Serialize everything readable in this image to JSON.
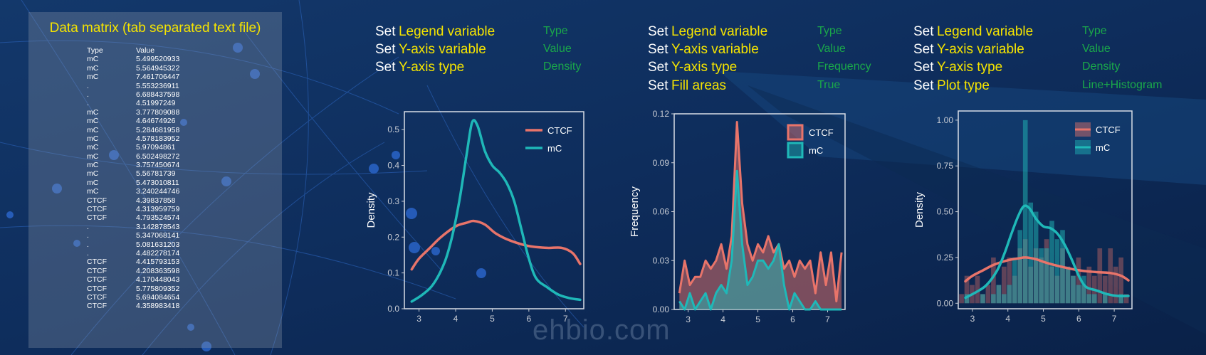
{
  "matrix": {
    "title": "Data matrix (tab separated text file)",
    "header": [
      "Type",
      "Value"
    ],
    "rows": [
      [
        "mC",
        "5.499520933"
      ],
      [
        "mC",
        "5.564945322"
      ],
      [
        "mC",
        "7.461706447"
      ],
      [
        ".",
        "5.553236911"
      ],
      [
        ".",
        "6.688437598"
      ],
      [
        ".",
        "4.51997249"
      ],
      [
        "mC",
        "3.777809088"
      ],
      [
        "mC",
        "4.64674926"
      ],
      [
        "mC",
        "5.284681958"
      ],
      [
        "mC",
        "4.578183952"
      ],
      [
        "mC",
        "5.97094861"
      ],
      [
        "mC",
        "6.502498272"
      ],
      [
        "mC",
        "3.757450674"
      ],
      [
        "mC",
        "5.56781739"
      ],
      [
        "mC",
        "5.473010811"
      ],
      [
        "mC",
        "3.240244746"
      ],
      [
        "CTCF",
        "4.39837858"
      ],
      [
        "CTCF",
        "4.313959759"
      ],
      [
        "CTCF",
        "4.793524574"
      ],
      [
        ".",
        "3.142878543"
      ],
      [
        ".",
        "5.347068141"
      ],
      [
        ".",
        "5.081631203"
      ],
      [
        ".",
        "4.482278174"
      ],
      [
        "CTCF",
        "4.415793153"
      ],
      [
        "CTCF",
        "4.208363598"
      ],
      [
        "CTCF",
        "4.170448043"
      ],
      [
        "CTCF",
        "5.775809352"
      ],
      [
        "CTCF",
        "5.694084654"
      ],
      [
        "CTCF",
        "4.358983418"
      ]
    ]
  },
  "settings": [
    {
      "lines": [
        {
          "set": "Set",
          "param": "Legend variable",
          "value": "Type"
        },
        {
          "set": "Set",
          "param": "Y-axis variable",
          "value": "Value"
        },
        {
          "set": "Set",
          "param": "Y-axis type",
          "value": "Density"
        }
      ]
    },
    {
      "lines": [
        {
          "set": "Set",
          "param": "Legend variable",
          "value": "Type"
        },
        {
          "set": "Set",
          "param": "Y-axis variable",
          "value": "Value"
        },
        {
          "set": "Set",
          "param": "Y-axis type",
          "value": "Frequency"
        },
        {
          "set": "Set",
          "param": "Fill areas",
          "value": "True"
        }
      ]
    },
    {
      "lines": [
        {
          "set": "Set",
          "param": "Legend variable",
          "value": "Type"
        },
        {
          "set": "Set",
          "param": "Y-axis variable",
          "value": "Value"
        },
        {
          "set": "Set",
          "param": "Y-axis type",
          "value": "Density"
        },
        {
          "set": "Set",
          "param": "Plot type",
          "value": "Line+Histogram"
        }
      ]
    }
  ],
  "watermark": "ehbio.com",
  "colors": {
    "ctcf": "#e8746a",
    "mc": "#1fb8b8",
    "title": "#f5e400",
    "value": "#1aa84a"
  },
  "chart_data": [
    {
      "type": "line",
      "ylabel": "Density",
      "xlabel": "",
      "xlim": [
        2.6,
        7.5
      ],
      "ylim": [
        0,
        0.55
      ],
      "xticks": [
        3,
        4,
        5,
        6,
        7
      ],
      "yticks": [
        0.0,
        0.1,
        0.2,
        0.3,
        0.4,
        0.5
      ],
      "ytick_labels": [
        "0.0",
        "0.1",
        "0.2",
        "0.3",
        "0.4",
        "0.5"
      ],
      "legend": "top-right",
      "series": [
        {
          "name": "CTCF",
          "x": [
            2.8,
            3.0,
            3.3,
            3.6,
            4.0,
            4.3,
            4.5,
            4.8,
            5.1,
            5.5,
            6.0,
            6.5,
            6.9,
            7.2,
            7.4
          ],
          "y": [
            0.11,
            0.14,
            0.17,
            0.2,
            0.23,
            0.24,
            0.245,
            0.235,
            0.21,
            0.19,
            0.175,
            0.17,
            0.17,
            0.155,
            0.125
          ]
        },
        {
          "name": "mC",
          "x": [
            2.8,
            3.1,
            3.4,
            3.7,
            3.9,
            4.1,
            4.3,
            4.45,
            4.6,
            4.8,
            5.0,
            5.2,
            5.4,
            5.6,
            5.8,
            6.0,
            6.2,
            6.5,
            6.8,
            7.1,
            7.4
          ],
          "y": [
            0.02,
            0.04,
            0.07,
            0.13,
            0.2,
            0.3,
            0.43,
            0.52,
            0.51,
            0.44,
            0.4,
            0.38,
            0.35,
            0.3,
            0.22,
            0.14,
            0.085,
            0.06,
            0.04,
            0.03,
            0.025
          ]
        }
      ]
    },
    {
      "type": "area",
      "ylabel": "Frequency",
      "xlabel": "",
      "xlim": [
        2.6,
        7.5
      ],
      "ylim": [
        0,
        0.12
      ],
      "xticks": [
        3,
        4,
        5,
        6,
        7
      ],
      "yticks": [
        0.0,
        0.03,
        0.06,
        0.09,
        0.12
      ],
      "ytick_labels": [
        "0.00",
        "0.03",
        "0.06",
        "0.09",
        "0.12"
      ],
      "legend": "top-right",
      "series": [
        {
          "name": "CTCF",
          "x": [
            2.75,
            2.9,
            3.05,
            3.2,
            3.35,
            3.5,
            3.65,
            3.8,
            3.95,
            4.1,
            4.25,
            4.4,
            4.55,
            4.7,
            4.85,
            5.0,
            5.15,
            5.3,
            5.45,
            5.6,
            5.75,
            5.9,
            6.05,
            6.2,
            6.35,
            6.5,
            6.65,
            6.8,
            6.95,
            7.1,
            7.25,
            7.4
          ],
          "y": [
            0.01,
            0.03,
            0.015,
            0.02,
            0.02,
            0.03,
            0.025,
            0.03,
            0.04,
            0.025,
            0.045,
            0.115,
            0.065,
            0.04,
            0.03,
            0.04,
            0.035,
            0.045,
            0.035,
            0.04,
            0.025,
            0.03,
            0.02,
            0.03,
            0.025,
            0.03,
            0.01,
            0.035,
            0.015,
            0.035,
            0.005,
            0.035
          ]
        },
        {
          "name": "mC",
          "x": [
            2.75,
            2.9,
            3.05,
            3.2,
            3.35,
            3.5,
            3.65,
            3.8,
            3.95,
            4.1,
            4.25,
            4.4,
            4.55,
            4.7,
            4.85,
            5.0,
            5.15,
            5.3,
            5.45,
            5.6,
            5.75,
            5.9,
            6.05,
            6.2,
            6.35,
            6.5,
            6.65,
            6.8,
            6.95,
            7.1,
            7.25,
            7.4
          ],
          "y": [
            0.005,
            0.0,
            0.01,
            0.0,
            0.005,
            0.01,
            0.0,
            0.01,
            0.015,
            0.01,
            0.03,
            0.085,
            0.04,
            0.015,
            0.02,
            0.03,
            0.03,
            0.025,
            0.03,
            0.04,
            0.015,
            0.0,
            0.01,
            0.005,
            0.0,
            0.0,
            0.005,
            0.0,
            0.0,
            0.0,
            0.0,
            0.0
          ]
        }
      ]
    },
    {
      "type": "line",
      "ylabel": "Density",
      "xlabel": "",
      "xlim": [
        2.6,
        7.5
      ],
      "ylim": [
        -0.03,
        1.05
      ],
      "xticks": [
        3,
        4,
        5,
        6,
        7
      ],
      "yticks": [
        0.0,
        0.25,
        0.5,
        0.75,
        1.0
      ],
      "ytick_labels": [
        "0.00",
        "0.25",
        "0.50",
        "0.75",
        "1.00"
      ],
      "legend": "top-right",
      "histogram": {
        "bins": [
          2.7,
          2.85,
          3.0,
          3.15,
          3.3,
          3.45,
          3.6,
          3.75,
          3.9,
          4.05,
          4.2,
          4.35,
          4.5,
          4.65,
          4.8,
          4.95,
          5.1,
          5.25,
          5.4,
          5.55,
          5.7,
          5.85,
          6.0,
          6.15,
          6.3,
          6.45,
          6.6,
          6.75,
          6.9,
          7.05,
          7.2,
          7.35
        ],
        "CTCF": [
          0.05,
          0.15,
          0.1,
          0.15,
          0.05,
          0.1,
          0.25,
          0.1,
          0.2,
          0.25,
          0.15,
          0.3,
          0.35,
          0.2,
          0.3,
          0.25,
          0.35,
          0.2,
          0.15,
          0.3,
          0.2,
          0.15,
          0.25,
          0.1,
          0.2,
          0.15,
          0.3,
          0.15,
          0.3,
          0.2,
          0.25,
          0.05
        ],
        "mC": [
          0.0,
          0.05,
          0.0,
          0.0,
          0.05,
          0.0,
          0.05,
          0.1,
          0.05,
          0.1,
          0.25,
          0.4,
          1.0,
          0.55,
          0.5,
          0.3,
          0.3,
          0.45,
          0.35,
          0.4,
          0.2,
          0.15,
          0.1,
          0.15,
          0.05,
          0.05,
          0.0,
          0.05,
          0.0,
          0.0,
          0.05,
          0.0
        ]
      },
      "series": [
        {
          "name": "CTCF",
          "x": [
            2.8,
            3.0,
            3.3,
            3.6,
            4.0,
            4.3,
            4.5,
            4.8,
            5.1,
            5.5,
            6.0,
            6.5,
            6.9,
            7.2,
            7.4
          ],
          "y": [
            0.12,
            0.15,
            0.18,
            0.21,
            0.235,
            0.245,
            0.25,
            0.24,
            0.22,
            0.2,
            0.18,
            0.17,
            0.165,
            0.15,
            0.125
          ]
        },
        {
          "name": "mC",
          "x": [
            2.8,
            3.1,
            3.4,
            3.7,
            3.9,
            4.1,
            4.3,
            4.45,
            4.6,
            4.8,
            5.0,
            5.2,
            5.4,
            5.6,
            5.8,
            6.0,
            6.2,
            6.5,
            6.8,
            7.1,
            7.4
          ],
          "y": [
            0.03,
            0.06,
            0.1,
            0.18,
            0.27,
            0.38,
            0.48,
            0.53,
            0.52,
            0.46,
            0.42,
            0.41,
            0.38,
            0.32,
            0.24,
            0.15,
            0.09,
            0.07,
            0.05,
            0.04,
            0.04
          ]
        }
      ]
    }
  ]
}
